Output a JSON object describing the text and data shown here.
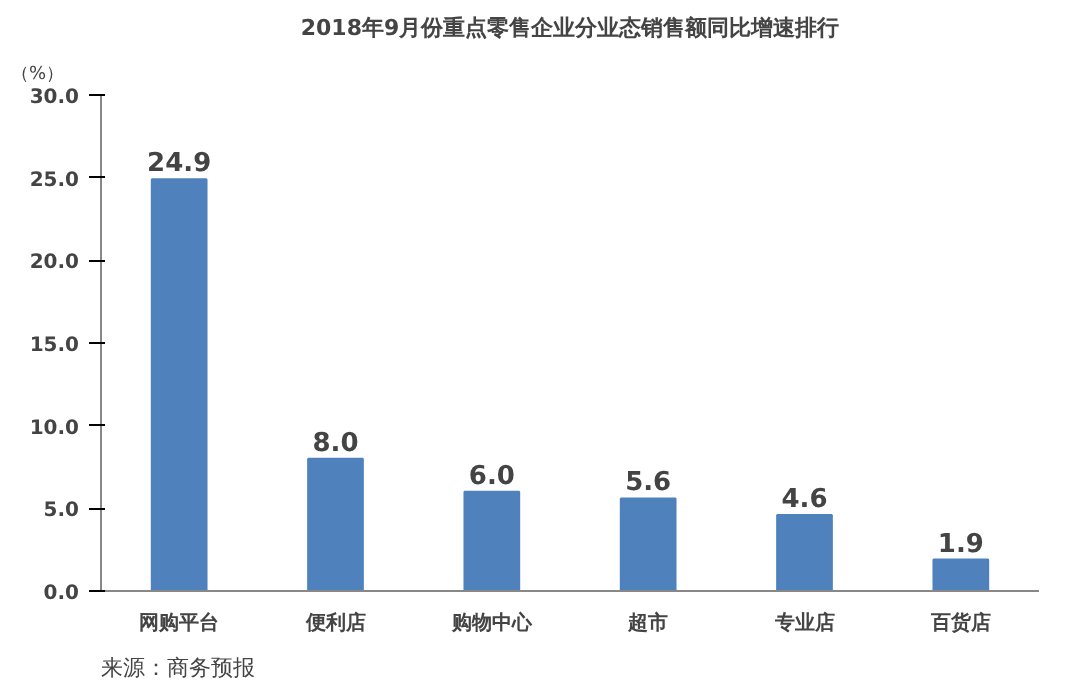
{
  "chart_data": {
    "type": "bar",
    "title": "2018年9月份重点零售企业分业态销售额同比增速排行",
    "ylabel": "（%）",
    "categories": [
      "网购平台",
      "便利店",
      "购物中心",
      "超市",
      "专业店",
      "百货店"
    ],
    "values": [
      24.9,
      8.0,
      6.0,
      5.6,
      4.6,
      1.9
    ],
    "value_labels": [
      "24.9",
      "8.0",
      "6.0",
      "5.6",
      "4.6",
      "1.9"
    ],
    "color": "#4f81bd",
    "ylim": [
      0,
      30
    ],
    "yticks": [
      {
        "value": 0,
        "label": "0.0"
      },
      {
        "value": 5,
        "label": "5.0"
      },
      {
        "value": 10,
        "label": "10.0"
      },
      {
        "value": 15,
        "label": "15.0"
      },
      {
        "value": 20,
        "label": "20.0"
      },
      {
        "value": 25,
        "label": "25.0"
      },
      {
        "value": 30,
        "label": "30.0"
      }
    ],
    "annotations": [
      "来源：商务预报"
    ]
  }
}
